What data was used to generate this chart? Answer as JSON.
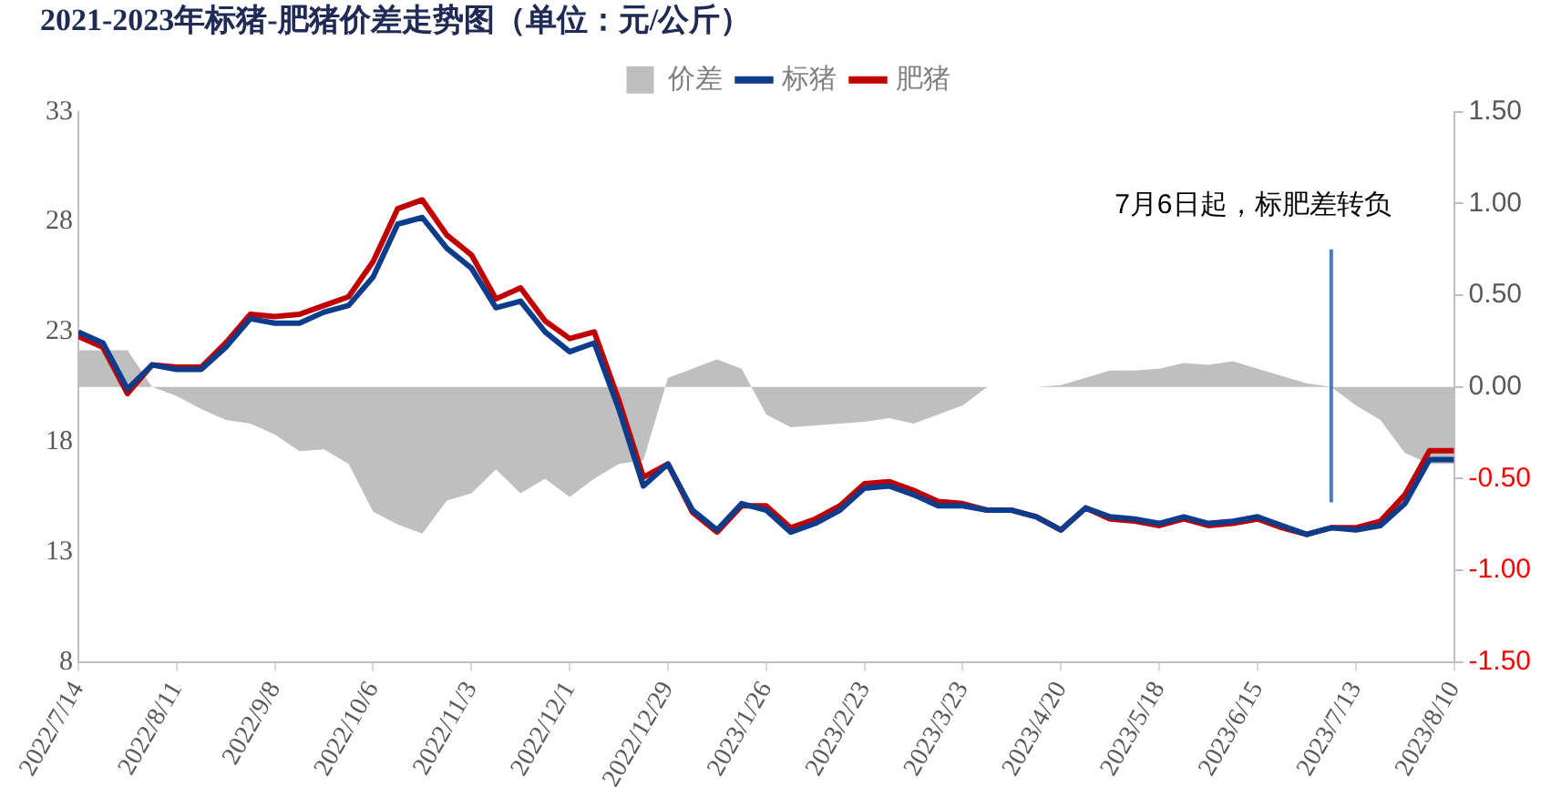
{
  "chart_data": {
    "type": "line",
    "title": "2021-2023年标猪-肥猪价差走势图（单位：元/公斤）",
    "x": [
      "2022-07-14",
      "2022-07-21",
      "2022-07-28",
      "2022-08-04",
      "2022-08-11",
      "2022-08-18",
      "2022-08-25",
      "2022-09-01",
      "2022-09-08",
      "2022-09-15",
      "2022-09-22",
      "2022-09-29",
      "2022-10-06",
      "2022-10-13",
      "2022-10-20",
      "2022-10-27",
      "2022-11-03",
      "2022-11-10",
      "2022-11-17",
      "2022-11-24",
      "2022-12-01",
      "2022-12-08",
      "2022-12-15",
      "2022-12-22",
      "2022-12-29",
      "2023-01-05",
      "2023-01-12",
      "2023-01-19",
      "2023-01-26",
      "2023-02-02",
      "2023-02-09",
      "2023-02-16",
      "2023-02-23",
      "2023-03-02",
      "2023-03-09",
      "2023-03-16",
      "2023-03-23",
      "2023-03-30",
      "2023-04-06",
      "2023-04-13",
      "2023-04-20",
      "2023-04-27",
      "2023-05-04",
      "2023-05-11",
      "2023-05-18",
      "2023-05-25",
      "2023-06-01",
      "2023-06-08",
      "2023-06-15",
      "2023-06-22",
      "2023-06-29",
      "2023-07-06",
      "2023-07-13",
      "2023-07-20",
      "2023-07-27",
      "2023-08-03",
      "2023-08-10"
    ],
    "series": [
      {
        "name": "价差",
        "type": "area",
        "axis": "y2",
        "color": "#bfbfbf",
        "values": [
          0.2,
          0.2,
          0.2,
          0.0,
          -0.05,
          -0.12,
          -0.18,
          -0.2,
          -0.26,
          -0.35,
          -0.34,
          -0.42,
          -0.68,
          -0.75,
          -0.8,
          -0.62,
          -0.58,
          -0.45,
          -0.58,
          -0.5,
          -0.6,
          -0.5,
          -0.42,
          -0.4,
          0.05,
          0.1,
          0.15,
          0.1,
          -0.15,
          -0.22,
          -0.21,
          -0.2,
          -0.19,
          -0.17,
          -0.2,
          -0.15,
          -0.1,
          0.0,
          0.0,
          0.0,
          0.01,
          0.05,
          0.09,
          0.09,
          0.1,
          0.13,
          0.12,
          0.14,
          0.1,
          0.06,
          0.02,
          0.0,
          -0.1,
          -0.18,
          -0.36,
          -0.42,
          -0.42
        ]
      },
      {
        "name": "标猪",
        "color": "#0b3d8c",
        "values": [
          23.0,
          22.5,
          20.4,
          21.5,
          21.3,
          21.3,
          22.3,
          23.6,
          23.4,
          23.4,
          23.9,
          24.2,
          25.5,
          27.9,
          28.2,
          26.8,
          25.9,
          24.1,
          24.4,
          23.0,
          22.1,
          22.5,
          19.5,
          16.0,
          17.0,
          14.9,
          14.0,
          15.2,
          14.9,
          13.9,
          14.3,
          14.9,
          15.9,
          16.0,
          15.6,
          15.1,
          15.1,
          14.9,
          14.9,
          14.6,
          14.0,
          15.0,
          14.6,
          14.5,
          14.3,
          14.6,
          14.3,
          14.4,
          14.6,
          14.2,
          13.8,
          14.1,
          14.0,
          14.2,
          15.2,
          17.2,
          17.2
        ]
      },
      {
        "name": "肥猪",
        "color": "#c00000",
        "values": [
          22.8,
          22.3,
          20.2,
          21.5,
          21.4,
          21.4,
          22.5,
          23.8,
          23.7,
          23.8,
          24.2,
          24.6,
          26.2,
          28.6,
          29.0,
          27.4,
          26.5,
          24.5,
          25.0,
          23.5,
          22.7,
          23.0,
          19.9,
          16.4,
          17.0,
          14.8,
          13.9,
          15.1,
          15.1,
          14.1,
          14.5,
          15.1,
          16.1,
          16.2,
          15.8,
          15.3,
          15.2,
          14.9,
          14.9,
          14.6,
          14.0,
          15.0,
          14.5,
          14.4,
          14.2,
          14.5,
          14.2,
          14.3,
          14.5,
          14.1,
          13.8,
          14.1,
          14.1,
          14.4,
          15.6,
          17.6,
          17.6
        ]
      }
    ],
    "xlim": [
      "2022-07-14",
      "2023-08-10"
    ],
    "xticks": [
      {
        "value": "2022-07-14",
        "label": "2022/7/14"
      },
      {
        "value": "2022-08-11",
        "label": "2022/8/11"
      },
      {
        "value": "2022-09-08",
        "label": "2022/9/8"
      },
      {
        "value": "2022-10-06",
        "label": "2022/10/6"
      },
      {
        "value": "2022-11-03",
        "label": "2022/11/3"
      },
      {
        "value": "2022-12-01",
        "label": "2022/12/1"
      },
      {
        "value": "2022-12-29",
        "label": "2022/12/29"
      },
      {
        "value": "2023-01-26",
        "label": "2023/1/26"
      },
      {
        "value": "2023-02-23",
        "label": "2023/2/23"
      },
      {
        "value": "2023-03-23",
        "label": "2023/3/23"
      },
      {
        "value": "2023-04-20",
        "label": "2023/4/20"
      },
      {
        "value": "2023-05-18",
        "label": "2023/5/18"
      },
      {
        "value": "2023-06-15",
        "label": "2023/6/15"
      },
      {
        "value": "2023-07-13",
        "label": "2023/7/13"
      },
      {
        "value": "2023-08-10",
        "label": "2023/8/10"
      }
    ],
    "ylim": [
      8,
      33
    ],
    "yticks": [
      8,
      13,
      18,
      23,
      28,
      33
    ],
    "y2lim": [
      -1.5,
      1.5
    ],
    "y2ticks": [
      {
        "value": -1.5,
        "label": "-1.50"
      },
      {
        "value": -1,
        "label": "-1.00"
      },
      {
        "value": -0.5,
        "label": "-0.50"
      },
      {
        "value": 0,
        "label": "0.00"
      },
      {
        "value": 0.5,
        "label": "0.50"
      },
      {
        "value": 1,
        "label": "1.00"
      },
      {
        "value": 1.5,
        "label": "1.50"
      }
    ],
    "ref_lines": [
      {
        "axis": "x",
        "value": "2023-07-06",
        "label": "7月6日起，标肥差转负",
        "color": "#4a7ebb"
      }
    ],
    "legend": "top",
    "grid": false,
    "marker": "none"
  }
}
